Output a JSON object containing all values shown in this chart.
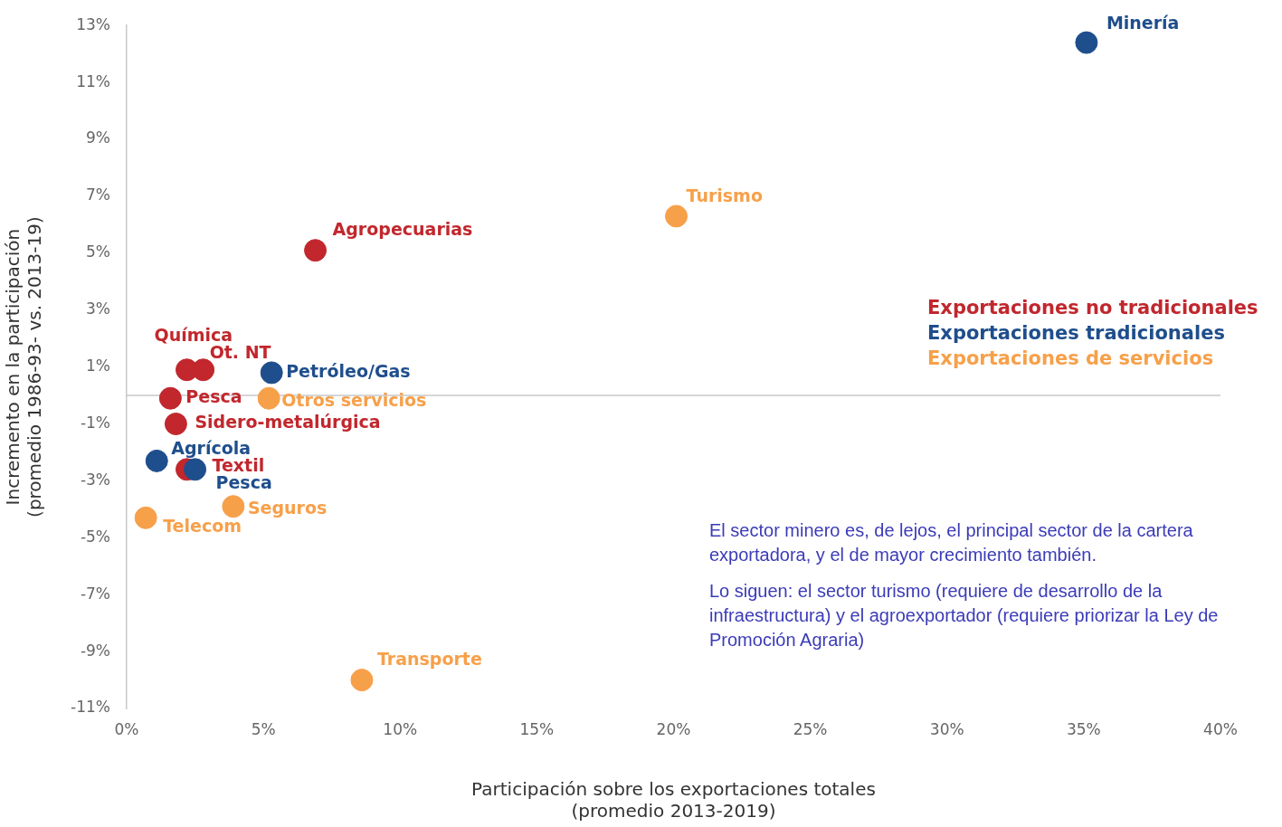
{
  "chart_data": {
    "type": "scatter",
    "xlabel": "Participación sobre los exportaciones totales\n(promedio 2013-2019)",
    "ylabel": "Incremento en la participación\n(promedio 1986-93- vs. 2013-19)",
    "series": [
      {
        "name": "Exportaciones no tradicionales",
        "color": "#c1272d",
        "x": [
          6.9,
          2.2,
          2.8,
          1.6,
          1.8,
          2.2
        ],
        "values": [
          5.1,
          0.9,
          0.9,
          -0.1,
          -1,
          -2.6
        ]
      },
      {
        "name": "Exportaciones tradicionales",
        "color": "#1f4e8c",
        "x": [
          35.1,
          5.3,
          1.1,
          2.5
        ],
        "values": [
          12.4,
          0.8,
          -2.3,
          -2.6
        ]
      },
      {
        "name": "Exportaciones de servicios",
        "color": "#f7a04a",
        "x": [
          20.1,
          5.2,
          3.9,
          0.7,
          8.6
        ],
        "values": [
          6.3,
          -0.1,
          -3.9,
          -4.3,
          -10
        ]
      }
    ],
    "xlim": [
      0,
      40
    ],
    "xticks": [
      {
        "value": 0,
        "label": "0%"
      },
      {
        "value": 5,
        "label": "5%"
      },
      {
        "value": 10,
        "label": "10%"
      },
      {
        "value": 15,
        "label": "15%"
      },
      {
        "value": 20,
        "label": "20%"
      },
      {
        "value": 25,
        "label": "25%"
      },
      {
        "value": 30,
        "label": "30%"
      },
      {
        "value": 35,
        "label": "35%"
      },
      {
        "value": 40,
        "label": "40%"
      }
    ],
    "ylim": [
      -11,
      13
    ],
    "yticks": [
      {
        "value": -11,
        "label": "-11%"
      },
      {
        "value": -9,
        "label": "-9%"
      },
      {
        "value": -7,
        "label": "-7%"
      },
      {
        "value": -5,
        "label": "-5%"
      },
      {
        "value": -3,
        "label": "-3%"
      },
      {
        "value": -1,
        "label": "-1%"
      },
      {
        "value": 1,
        "label": "1%"
      },
      {
        "value": 3,
        "label": "3%"
      },
      {
        "value": 5,
        "label": "5%"
      },
      {
        "value": 7,
        "label": "7%"
      },
      {
        "value": 9,
        "label": "9%"
      },
      {
        "value": 11,
        "label": "11%"
      },
      {
        "value": 13,
        "label": "13%"
      }
    ],
    "ref_lines": [
      {
        "axis": "y",
        "value": 0,
        "color": "#c8c8c8"
      }
    ],
    "marker": "circle",
    "legend": "right",
    "grid": false,
    "annotations": [
      {
        "text": "Minería",
        "x": 35.1,
        "y": 12.4
      },
      {
        "text": "Turismo",
        "x": 20.1,
        "y": 6.3
      },
      {
        "text": "Agropecuarias",
        "x": 6.9,
        "y": 5.1
      },
      {
        "text": "Química",
        "x": 2.2,
        "y": 0.9
      },
      {
        "text": "Ot. NT",
        "x": 2.8,
        "y": 0.9
      },
      {
        "text": "Petróleo/Gas",
        "x": 5.3,
        "y": 0.8
      },
      {
        "text": "Pesca",
        "x": 1.6,
        "y": -0.1
      },
      {
        "text": "Otros servicios",
        "x": 5.2,
        "y": -0.1
      },
      {
        "text": "Sidero-metalúrgica",
        "x": 1.8,
        "y": -1
      },
      {
        "text": "Agrícola",
        "x": 1.1,
        "y": -2.3
      },
      {
        "text": "Textil",
        "x": 2.2,
        "y": -2.6
      },
      {
        "text": "Pesca",
        "x": 2.5,
        "y": -2.6
      },
      {
        "text": "Seguros",
        "x": 3.9,
        "y": -3.9
      },
      {
        "text": "Telecom",
        "x": 0.7,
        "y": -4.3
      },
      {
        "text": "Transporte",
        "x": 8.6,
        "y": -10
      },
      "El sector minero es, de lejos, el principal sector de la cartera exportadora, y el de mayor crecimiento también.",
      "Lo siguen: el sector turismo (requiere de desarrollo de la infraestructura) y el agroexportador (requiere priorizar la Ley de Promoción Agraria)"
    ]
  }
}
